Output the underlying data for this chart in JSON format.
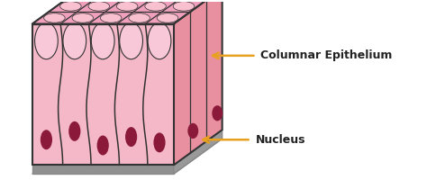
{
  "bg_color": "#ffffff",
  "cell_fill_top": "#f0a0bc",
  "cell_fill_front": "#f5b8c8",
  "cell_fill_side": "#e8909f",
  "cell_border": "#333333",
  "nucleus_color": "#8b1a3a",
  "base_fill": "#b0b0b0",
  "base_edge": "#888888",
  "base_bottom": "#909090",
  "arrow_color": "#e8a020",
  "label_color": "#222222",
  "label1": "Columnar Epithelium",
  "label2": "Nucleus",
  "figsize": [
    4.74,
    2.1
  ],
  "dpi": 100
}
